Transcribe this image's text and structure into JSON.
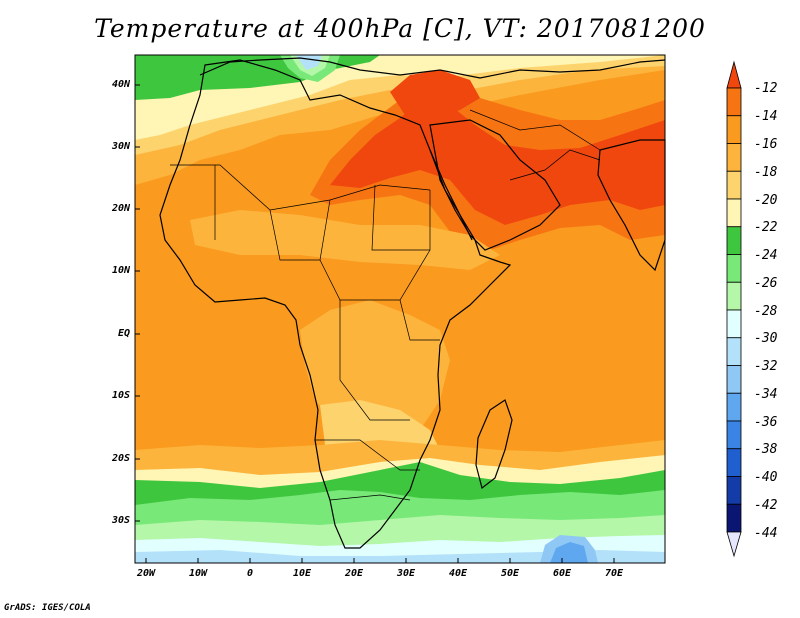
{
  "title": "Temperature at 400hPa [C], VT: 2017081200",
  "footer": "GrADS: IGES/COLA",
  "lat_labels": [
    "40N",
    "30N",
    "20N",
    "10N",
    "EQ",
    "10S",
    "20S",
    "30S"
  ],
  "lon_labels": [
    "20W",
    "10W",
    "0",
    "10E",
    "20E",
    "30E",
    "40E",
    "50E",
    "60E",
    "70E"
  ],
  "colorbar": {
    "labels": [
      "-12",
      "-14",
      "-16",
      "-18",
      "-20",
      "-22",
      "-24",
      "-26",
      "-28",
      "-30",
      "-32",
      "-34",
      "-36",
      "-38",
      "-40",
      "-42",
      "-44"
    ],
    "colors": [
      "#f0470f",
      "#f77413",
      "#fa9a1e",
      "#fcb43c",
      "#fdd36d",
      "#fff5b4",
      "#3fc63f",
      "#78e878",
      "#b4f7a8",
      "#e1ffff",
      "#b4e1fa",
      "#8fc8f5",
      "#5fa8f0",
      "#3a84e6",
      "#1f5fd0",
      "#133ca8",
      "#0a1672"
    ]
  },
  "colors": {
    "c12": "#f0470f",
    "c14": "#f77413",
    "c16": "#fa9a1e",
    "c18": "#fcb43c",
    "c20": "#fdd36d",
    "c22": "#fff5b4",
    "c24": "#3fc63f",
    "c26": "#78e878",
    "c28": "#b4f7a8",
    "c30": "#e1ffff",
    "c32": "#b4e1fa",
    "c34": "#8fc8f5",
    "c36": "#5fa8f0"
  }
}
